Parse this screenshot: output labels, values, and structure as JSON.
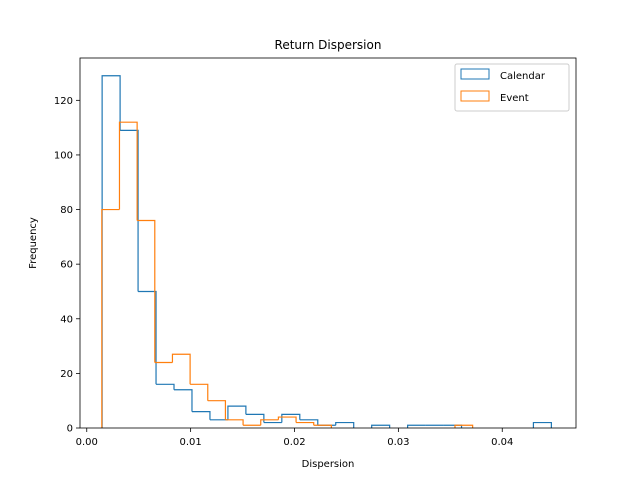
{
  "chart_data": {
    "type": "histogram",
    "title": "Return Dispersion",
    "xlabel": "Dispersion",
    "ylabel": "Frequency",
    "xlim": [
      -0.00065,
      0.0471
    ],
    "ylim": [
      0,
      135.5
    ],
    "xticks": [
      0.0,
      0.01,
      0.02,
      0.03,
      0.04
    ],
    "xtick_labels": [
      "0.00",
      "0.01",
      "0.02",
      "0.03",
      "0.04"
    ],
    "yticks": [
      0,
      20,
      40,
      60,
      80,
      100,
      120
    ],
    "ytick_labels": [
      "0",
      "20",
      "40",
      "60",
      "80",
      "100",
      "120"
    ],
    "grid": false,
    "legend_position": "top-right",
    "series": [
      {
        "name": "Calendar",
        "color": "#1f77b4",
        "histtype": "step",
        "bin_edges": [
          0.00148,
          0.00321,
          0.00494,
          0.00667,
          0.0084,
          0.01013,
          0.01186,
          0.01359,
          0.01532,
          0.01705,
          0.01878,
          0.02051,
          0.02224,
          0.02397,
          0.0257,
          0.02743,
          0.02916,
          0.03089,
          0.03262,
          0.03435,
          0.03608,
          0.03781,
          0.03954,
          0.04127,
          0.043,
          0.04473
        ],
        "counts": [
          129,
          109,
          50,
          16,
          14,
          6,
          3,
          8,
          5,
          2,
          5,
          3,
          1,
          2,
          0,
          1,
          0,
          1,
          1,
          1,
          0,
          0,
          0,
          0,
          2
        ]
      },
      {
        "name": "Event",
        "color": "#ff7f0e",
        "histtype": "step",
        "bin_edges": [
          0.00145,
          0.00315,
          0.00485,
          0.00655,
          0.00825,
          0.00995,
          0.01165,
          0.01335,
          0.01505,
          0.01675,
          0.01845,
          0.02015,
          0.02185,
          0.02355,
          0.02525,
          0.02695,
          0.02865,
          0.03035,
          0.03205,
          0.03375,
          0.03545,
          0.03715,
          0.03885,
          0.04055,
          0.04225
        ],
        "counts": [
          80,
          112,
          76,
          24,
          27,
          16,
          10,
          3,
          1,
          3,
          4,
          2,
          1,
          0,
          0,
          0,
          0,
          0,
          0,
          0,
          1,
          0,
          0,
          0
        ]
      }
    ]
  }
}
